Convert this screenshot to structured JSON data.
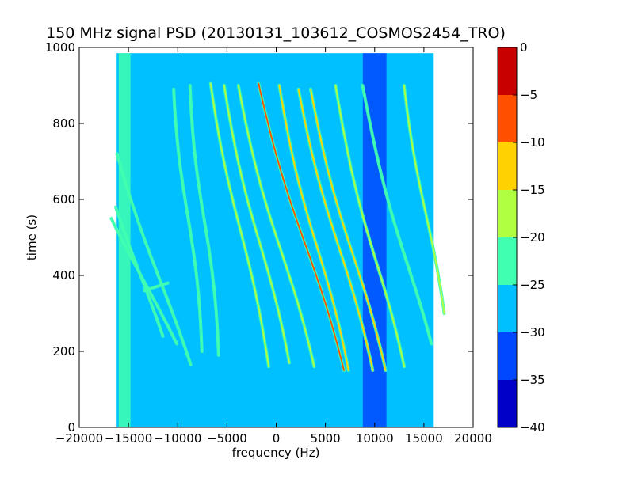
{
  "chart_data": {
    "type": "heatmap",
    "title": "150 MHz signal PSD (20130131_103612_COSMOS2454_TRO)",
    "xlabel": "frequency (Hz)",
    "ylabel": "time (s)",
    "xlim": [
      -20000,
      20000
    ],
    "ylim": [
      0,
      1000
    ],
    "x_ticks": [
      -20000,
      -15000,
      -10000,
      -5000,
      0,
      5000,
      10000,
      15000,
      20000
    ],
    "y_ticks": [
      0,
      200,
      400,
      600,
      800,
      1000
    ],
    "data_extent": {
      "x": [
        -16200,
        16000
      ],
      "y": [
        0,
        985
      ]
    },
    "colorbar": {
      "range": [
        -40,
        0
      ],
      "ticks": [
        0,
        -5,
        -10,
        -15,
        -20,
        -25,
        -30,
        -35,
        -40
      ],
      "levels": [
        {
          "from": -40,
          "to": -35,
          "color": "#0000c8"
        },
        {
          "from": -35,
          "to": -30,
          "color": "#0048ff"
        },
        {
          "from": -30,
          "to": -25,
          "color": "#00c0ff"
        },
        {
          "from": -25,
          "to": -20,
          "color": "#40ffb0"
        },
        {
          "from": -20,
          "to": -15,
          "color": "#b0ff40"
        },
        {
          "from": -15,
          "to": -10,
          "color": "#ffd200"
        },
        {
          "from": -10,
          "to": -5,
          "color": "#ff5000"
        },
        {
          "from": -5,
          "to": 0,
          "color": "#c80000"
        }
      ]
    },
    "background_level": -27,
    "bands": [
      {
        "x_from": -16000,
        "x_to": -14800,
        "level": -22
      },
      {
        "x_from": 8800,
        "x_to": 11200,
        "level": -32
      }
    ],
    "traces": [
      {
        "x_top": -11000,
        "x_bottom": -13500,
        "t_top": 380,
        "t_bottom": 360,
        "t_mid": 380,
        "amp": 2500,
        "level": -22
      },
      {
        "x_top": -15500,
        "x_bottom": -12200,
        "t_top": 580,
        "t_bottom": 240,
        "t_mid": 395,
        "amp": 2600,
        "level": -20
      },
      {
        "x_top": -15800,
        "x_bottom": -11000,
        "t_top": 550,
        "t_bottom": 220,
        "t_mid": 380,
        "amp": 3300,
        "level": -20
      },
      {
        "x_top": -15000,
        "x_bottom": -9600,
        "t_top": 720,
        "t_bottom": 165,
        "t_mid": 380,
        "amp": 2700,
        "level": -22
      },
      {
        "x_top": -9000,
        "x_bottom": -9000,
        "t_top": 890,
        "t_bottom": 200,
        "t_mid": 560,
        "amp": 3300,
        "level": -22
      },
      {
        "x_top": -7300,
        "x_bottom": -7300,
        "t_top": 900,
        "t_bottom": 190,
        "t_mid": 545,
        "amp": 3300,
        "level": -22
      },
      {
        "x_top": -5400,
        "x_bottom": -2000,
        "t_top": 905,
        "t_bottom": 160,
        "t_mid": 520,
        "amp": 2800,
        "level": -18
      },
      {
        "x_top": -3800,
        "x_bottom": 0,
        "t_top": 900,
        "t_bottom": 170,
        "t_mid": 480,
        "amp": 3200,
        "level": -18
      },
      {
        "x_top": -2300,
        "x_bottom": 2500,
        "t_top": 900,
        "t_bottom": 160,
        "t_mid": 460,
        "amp": 3300,
        "level": -16
      },
      {
        "x_top": -400,
        "x_bottom": 5600,
        "t_top": 905,
        "t_bottom": 150,
        "t_mid": 480,
        "amp": 3000,
        "level": -8
      },
      {
        "x_top": 1800,
        "x_bottom": 6000,
        "t_top": 900,
        "t_bottom": 150,
        "t_mid": 470,
        "amp": 3200,
        "level": -12
      },
      {
        "x_top": 3700,
        "x_bottom": 8500,
        "t_top": 890,
        "t_bottom": 150,
        "t_mid": 470,
        "amp": 3100,
        "level": -12
      },
      {
        "x_top": 5000,
        "x_bottom": 9800,
        "t_top": 890,
        "t_bottom": 150,
        "t_mid": 450,
        "amp": 3200,
        "level": -14
      },
      {
        "x_top": 7500,
        "x_bottom": 11800,
        "t_top": 900,
        "t_bottom": 160,
        "t_mid": 430,
        "amp": 3100,
        "level": -18
      },
      {
        "x_top": 10200,
        "x_bottom": 14800,
        "t_top": 900,
        "t_bottom": 220,
        "t_mid": 420,
        "amp": 3000,
        "level": -22
      },
      {
        "x_top": 14200,
        "x_bottom": 16000,
        "t_top": 900,
        "t_bottom": 300,
        "t_mid": 560,
        "amp": 2800,
        "level": -18
      }
    ]
  }
}
